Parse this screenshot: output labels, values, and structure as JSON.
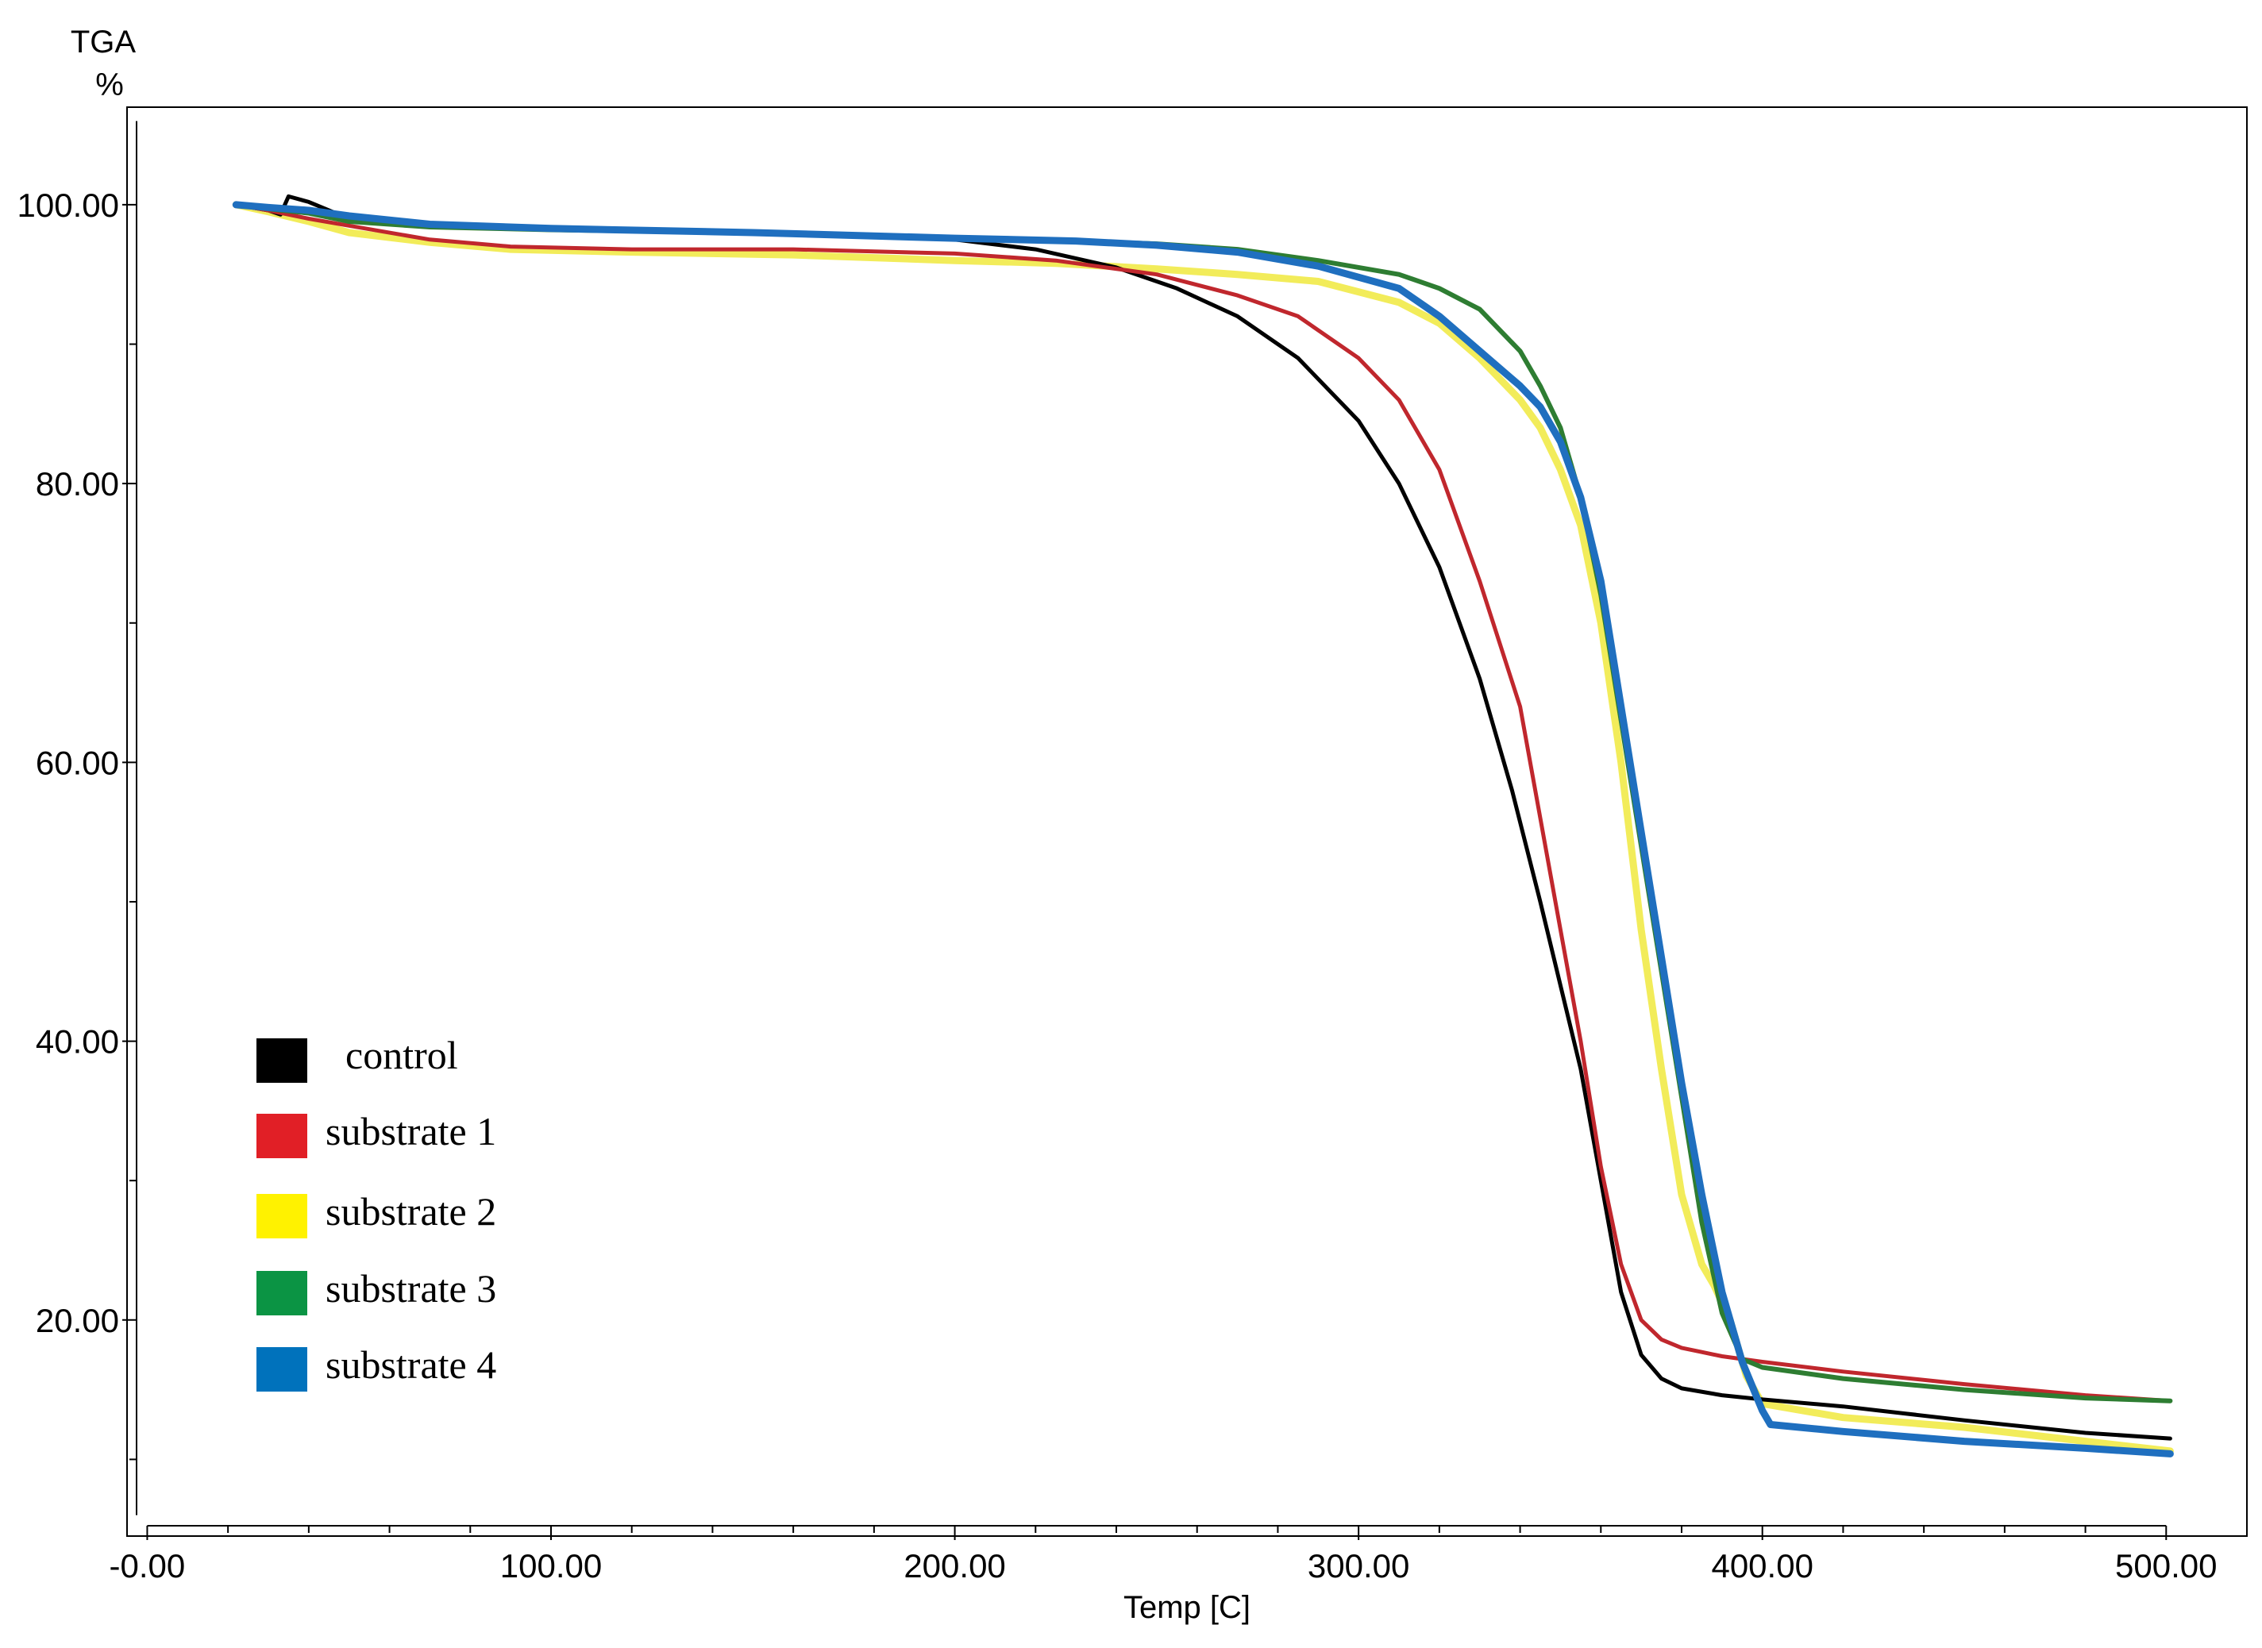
{
  "chart_data": {
    "type": "line",
    "title": "",
    "ylabel_top": "TGA",
    "ylabel_unit": "%",
    "xlabel": "Temp  [C]",
    "xlim": [
      -5,
      520
    ],
    "ylim": [
      4.5,
      107
    ],
    "x_ticks": [
      {
        "value": 0,
        "label": "-0.00"
      },
      {
        "value": 100,
        "label": "100.00"
      },
      {
        "value": 200,
        "label": "200.00"
      },
      {
        "value": 300,
        "label": "300.00"
      },
      {
        "value": 400,
        "label": "400.00"
      },
      {
        "value": 500,
        "label": "500.00"
      }
    ],
    "y_ticks": [
      {
        "value": 20,
        "label": "20.00"
      },
      {
        "value": 40,
        "label": "40.00"
      },
      {
        "value": 60,
        "label": "60.00"
      },
      {
        "value": 80,
        "label": "80.00"
      },
      {
        "value": 100,
        "label": "100.00"
      }
    ],
    "legend_position": "lower-left",
    "series": [
      {
        "name": "control",
        "color": "#000000",
        "x": [
          22,
          30,
          33,
          35,
          40,
          50,
          80,
          120,
          160,
          200,
          220,
          240,
          255,
          270,
          285,
          300,
          310,
          320,
          330,
          338,
          345,
          350,
          355,
          360,
          365,
          370,
          375,
          380,
          390,
          400,
          420,
          450,
          480,
          501
        ],
        "y": [
          100,
          99.6,
          99.3,
          100.6,
          100.2,
          99,
          98.4,
          98.2,
          98,
          97.5,
          96.8,
          95.5,
          94,
          92,
          89,
          84.5,
          80,
          74,
          66,
          58,
          50,
          44,
          38,
          30,
          22,
          17.5,
          15.8,
          15.1,
          14.6,
          14.3,
          13.8,
          12.8,
          11.9,
          11.5
        ]
      },
      {
        "name": "substrate 1",
        "color": "#c0272d",
        "x": [
          22,
          30,
          40,
          50,
          70,
          90,
          120,
          160,
          200,
          225,
          250,
          270,
          285,
          300,
          310,
          320,
          330,
          340,
          345,
          350,
          355,
          360,
          365,
          370,
          375,
          380,
          385,
          390,
          400,
          420,
          450,
          480,
          501
        ],
        "y": [
          100,
          99.6,
          99,
          98.5,
          97.5,
          97,
          96.8,
          96.8,
          96.5,
          96,
          95,
          93.5,
          92,
          89,
          86,
          81,
          73,
          64,
          56,
          48,
          40,
          31,
          24,
          20,
          18.6,
          18,
          17.7,
          17.4,
          17,
          16.3,
          15.4,
          14.6,
          14.2
        ]
      },
      {
        "name": "substrate 2",
        "color": "#f2ec5a",
        "x": [
          22,
          30,
          40,
          50,
          70,
          90,
          120,
          160,
          200,
          225,
          250,
          270,
          290,
          310,
          320,
          330,
          340,
          345,
          350,
          355,
          360,
          365,
          370,
          375,
          380,
          385,
          388,
          392,
          396,
          400,
          420,
          450,
          480,
          501
        ],
        "y": [
          100,
          99.5,
          98.8,
          98,
          97.3,
          96.8,
          96.6,
          96.4,
          96,
          95.8,
          95.4,
          95,
          94.5,
          93,
          91.5,
          89,
          86,
          84,
          81,
          77,
          70,
          60,
          48,
          38,
          29,
          24,
          22.5,
          20,
          16,
          14,
          13,
          12.3,
          11.3,
          10.6
        ]
      },
      {
        "name": "substrate 3",
        "color": "#2e7d32",
        "x": [
          22,
          30,
          40,
          50,
          70,
          100,
          150,
          200,
          230,
          250,
          270,
          290,
          310,
          320,
          330,
          340,
          345,
          350,
          355,
          360,
          365,
          370,
          375,
          380,
          385,
          390,
          395,
          400,
          420,
          450,
          480,
          501
        ],
        "y": [
          100,
          99.7,
          99.4,
          98.8,
          98.4,
          98.2,
          98,
          97.6,
          97.4,
          97.2,
          96.8,
          96,
          95,
          94,
          92.5,
          89.5,
          87,
          84,
          79,
          72,
          63,
          54,
          45,
          36,
          27,
          20.5,
          17.2,
          16.6,
          15.8,
          15,
          14.4,
          14.2
        ]
      },
      {
        "name": "substrate 4",
        "color": "#1f6fbf",
        "x": [
          22,
          30,
          40,
          50,
          70,
          100,
          150,
          200,
          230,
          250,
          270,
          290,
          310,
          320,
          330,
          340,
          345,
          350,
          355,
          360,
          365,
          370,
          375,
          380,
          385,
          390,
          395,
          400,
          402,
          420,
          450,
          480,
          501
        ],
        "y": [
          100,
          99.8,
          99.6,
          99.2,
          98.6,
          98.3,
          98,
          97.6,
          97.4,
          97.1,
          96.6,
          95.6,
          94,
          92,
          89.5,
          87,
          85.5,
          83,
          79,
          73,
          64,
          55,
          46,
          37,
          29,
          22,
          17,
          13.5,
          12.5,
          12,
          11.3,
          10.8,
          10.4
        ]
      }
    ]
  }
}
